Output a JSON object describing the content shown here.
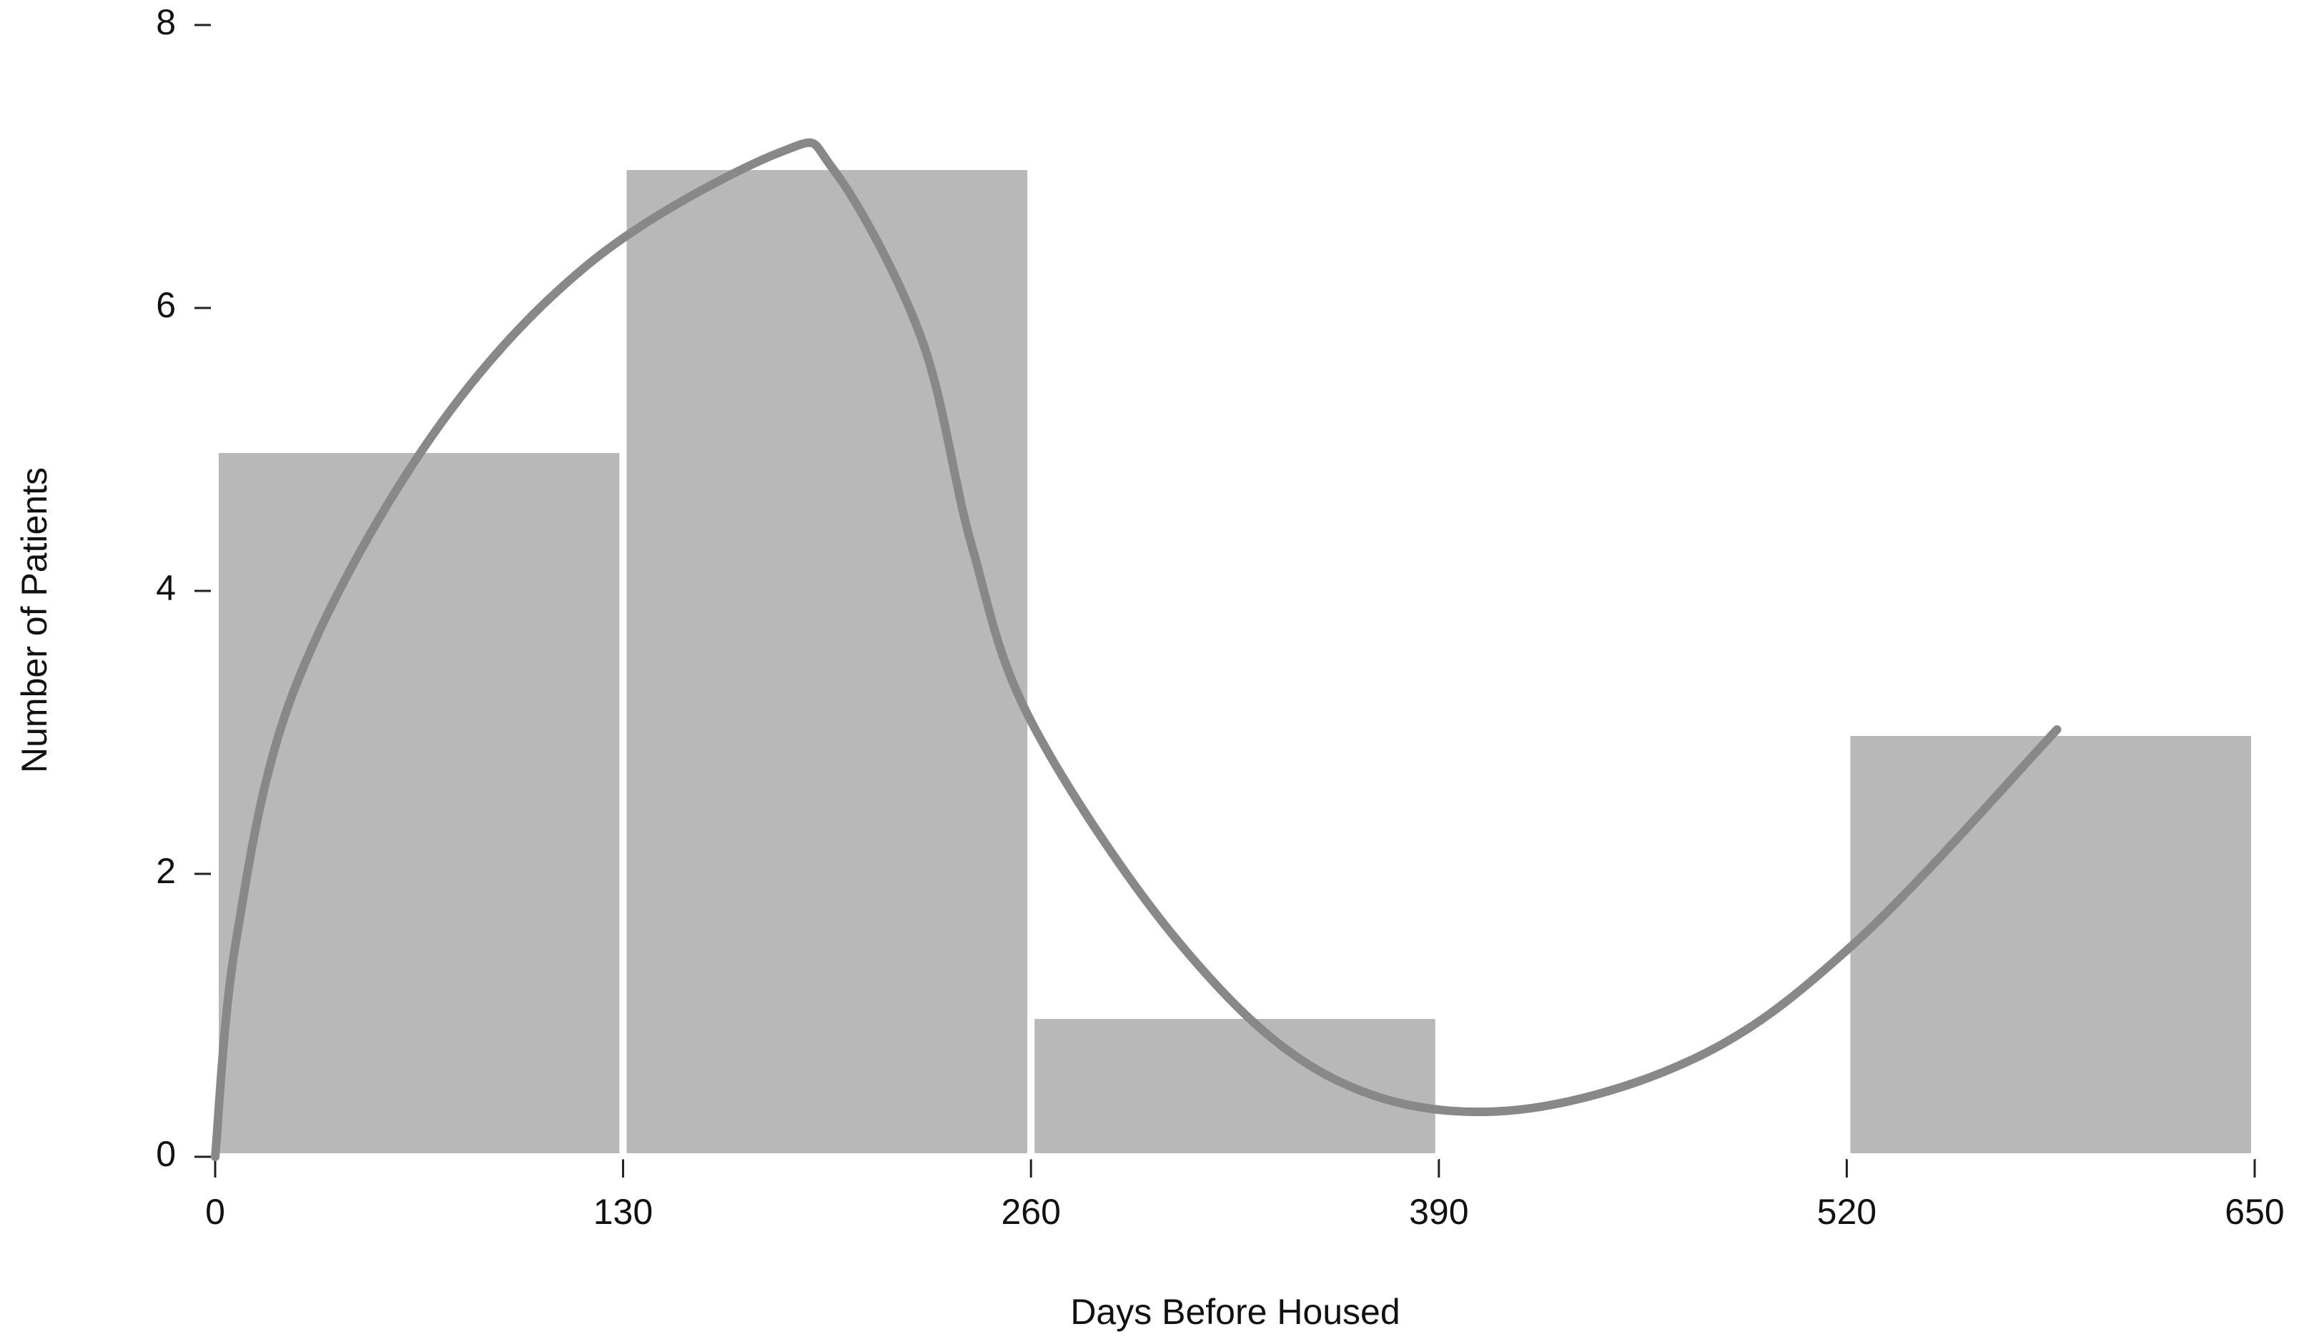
{
  "chart_data": {
    "type": "histogram",
    "x_label": "Days Before Housed",
    "y_label": "Number of Patients",
    "bins": [
      0,
      130,
      260,
      390,
      520,
      650
    ],
    "values": [
      5,
      7,
      1,
      0,
      3
    ],
    "color": "#b8b8b8",
    "curve": {
      "color": "#888888",
      "x": [
        0,
        6.6,
        25,
        68,
        119,
        180,
        197,
        225,
        241,
        260,
        307,
        354,
        408,
        471,
        523,
        587
      ],
      "y": [
        0,
        1.52,
        3.29,
        5.06,
        6.31,
        7.1,
        6.98,
        5.79,
        4.33,
        3.08,
        1.52,
        0.58,
        0.32,
        0.69,
        1.52,
        3.02
      ]
    },
    "xlim": [
      0,
      650
    ],
    "xticks": [
      0,
      130,
      260,
      390,
      520,
      650
    ],
    "ylim": [
      0,
      8
    ],
    "yticks": [
      0,
      2,
      4,
      6,
      8
    ]
  }
}
